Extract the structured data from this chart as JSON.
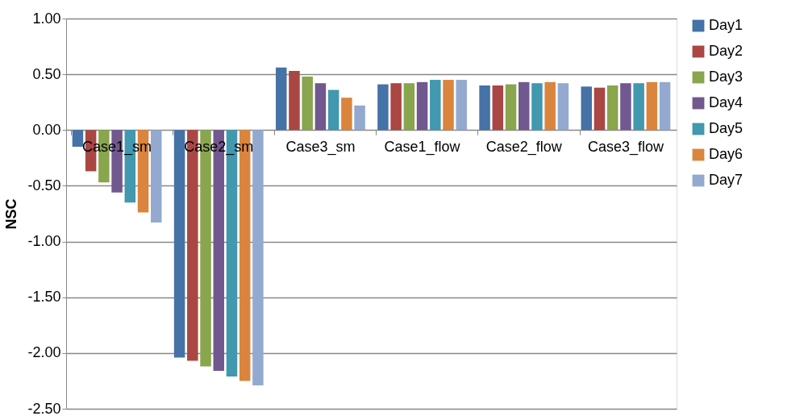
{
  "chart_data": {
    "type": "bar",
    "ylabel": "NSC",
    "categories": [
      "Case1_sm",
      "Case2_sm",
      "Case3_sm",
      "Case1_flow",
      "Case2_flow",
      "Case3_flow"
    ],
    "series": [
      {
        "name": "Day1",
        "color": "#4572a7",
        "values": [
          -0.15,
          -2.04,
          0.56,
          0.41,
          0.4,
          0.39
        ]
      },
      {
        "name": "Day2",
        "color": "#aa4643",
        "values": [
          -0.37,
          -2.07,
          0.53,
          0.42,
          0.4,
          0.38
        ]
      },
      {
        "name": "Day3",
        "color": "#89a54e",
        "values": [
          -0.47,
          -2.12,
          0.48,
          0.42,
          0.41,
          0.4
        ]
      },
      {
        "name": "Day4",
        "color": "#71588f",
        "values": [
          -0.56,
          -2.16,
          0.42,
          0.43,
          0.43,
          0.42
        ]
      },
      {
        "name": "Day5",
        "color": "#4198af",
        "values": [
          -0.65,
          -2.21,
          0.36,
          0.45,
          0.42,
          0.42
        ]
      },
      {
        "name": "Day6",
        "color": "#db843d",
        "values": [
          -0.74,
          -2.25,
          0.29,
          0.45,
          0.43,
          0.43
        ]
      },
      {
        "name": "Day7",
        "color": "#93a9cf",
        "values": [
          -0.83,
          -2.29,
          0.22,
          0.45,
          0.42,
          0.43
        ]
      }
    ],
    "ylim": [
      -2.5,
      1.0
    ],
    "yticks": [
      {
        "value": -2.5,
        "label": "-2.50"
      },
      {
        "value": -2.0,
        "label": "-2.00"
      },
      {
        "value": -1.5,
        "label": "-1.50"
      },
      {
        "value": -1.0,
        "label": "-1.00"
      },
      {
        "value": -0.5,
        "label": "-0.50"
      },
      {
        "value": 0,
        "label": "0.00"
      },
      {
        "value": 0.5,
        "label": "0.50"
      },
      {
        "value": 1.0,
        "label": "1.00"
      }
    ],
    "grid": "y",
    "legend": "right"
  }
}
